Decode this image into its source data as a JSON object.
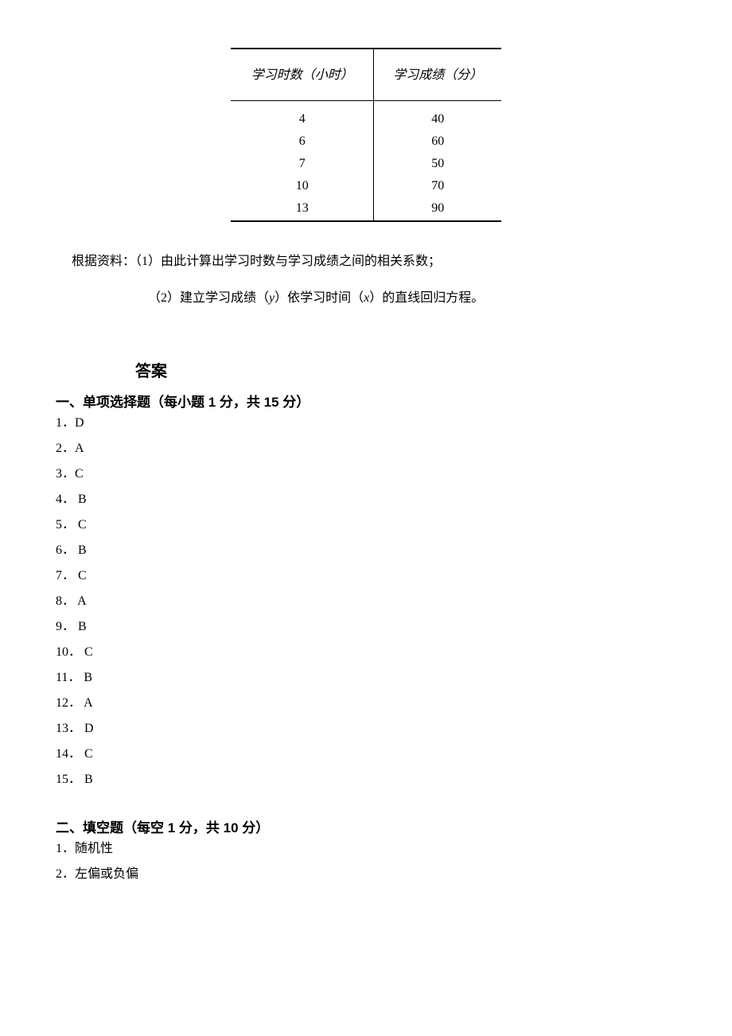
{
  "table": {
    "header_col1": "学习时数（小时）",
    "header_col2": "学习成绩（分）",
    "rows": [
      {
        "hours": "4",
        "score": "40"
      },
      {
        "hours": "6",
        "score": "60"
      },
      {
        "hours": "7",
        "score": "50"
      },
      {
        "hours": "10",
        "score": "70"
      },
      {
        "hours": "13",
        "score": "90"
      }
    ]
  },
  "question": {
    "line1_prefix": "根据资料：（1）由此计算出学习时数与学习成绩之间的相关系数；",
    "line2_prefix": "（2）建立学习成绩（",
    "line2_var1": "y",
    "line2_mid": "）依学习时间（",
    "line2_var2": "x",
    "line2_suffix": "）的直线回归方程。"
  },
  "answers_title": "答案",
  "section1": {
    "heading": "一、单项选择题（每小题 1 分，共 15 分）",
    "items": [
      "1．D",
      "2．A",
      "3．C",
      "4． B",
      "5．  C",
      "6．  B",
      "7．  C",
      "8．  A",
      "9．  B",
      "10． C",
      "11．  B",
      "12．  A",
      "13．  D",
      "14．  C",
      "15．  B"
    ]
  },
  "section2": {
    "heading": "二、填空题（每空 1 分，共 10 分）",
    "items": [
      "1．随机性",
      "2．左偏或负偏"
    ]
  }
}
